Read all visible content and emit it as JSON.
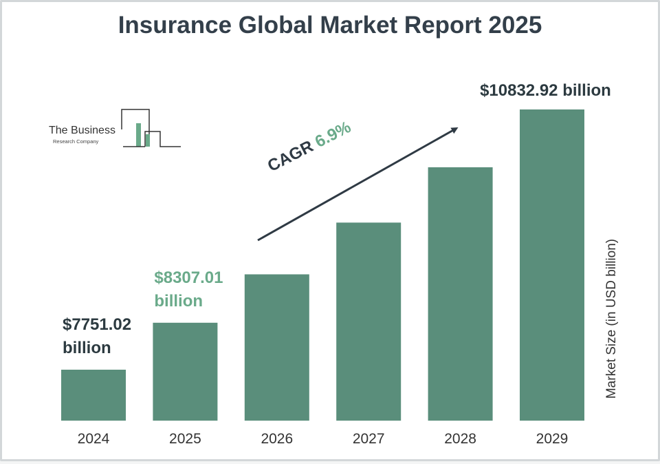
{
  "title": "Insurance Global Market Report 2025",
  "logo": {
    "line1": "The Business",
    "line2": "Research Company"
  },
  "chart_data": {
    "type": "bar",
    "categories": [
      "2024",
      "2025",
      "2026",
      "2027",
      "2028",
      "2029"
    ],
    "values": [
      7751.02,
      8307.01,
      8880.3,
      9493.0,
      10148.1,
      10832.92
    ],
    "value_labels": [
      "$7751.02 billion",
      "$8307.01 billion",
      "",
      "",
      "",
      "$10832.92 billion"
    ],
    "ylabel": "Market Size (in USD billion)",
    "xlabel": "",
    "bar_color": "#5a8e7b",
    "highlight_color": "#6aaa8a",
    "grid": false,
    "annotation": {
      "text": "CAGR",
      "value": "6.9%"
    }
  }
}
